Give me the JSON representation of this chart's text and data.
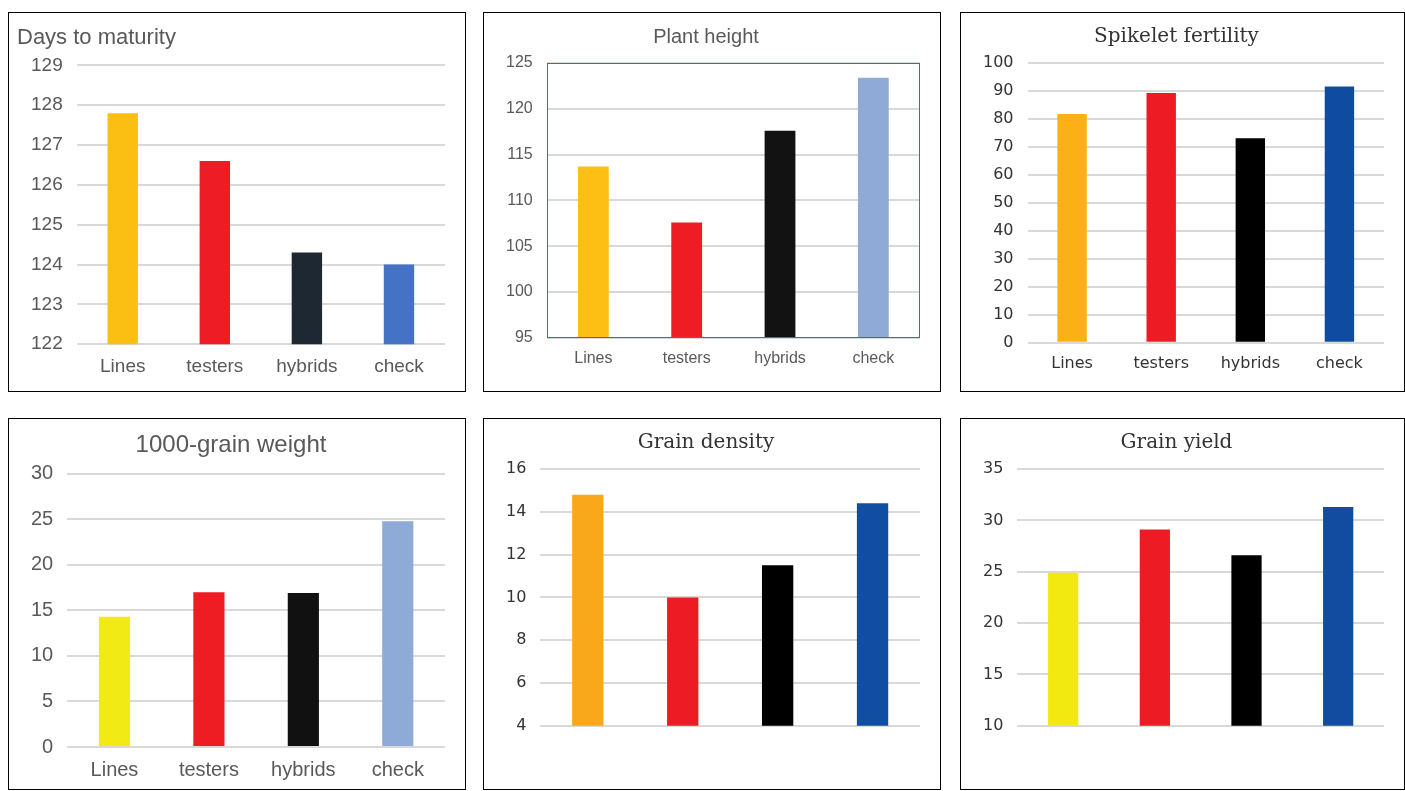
{
  "chart_data": [
    {
      "type": "bar",
      "title": "Days to maturity",
      "categories": [
        "Lines",
        "testers",
        "hybrids",
        "check"
      ],
      "values": [
        127.8,
        126.6,
        124.3,
        124.0
      ],
      "colors": [
        "#fbbf14",
        "#ee1c24",
        "#1e2833",
        "#4472c4"
      ],
      "ylim": [
        122,
        129
      ],
      "yticks": [
        122,
        123,
        124,
        125,
        126,
        127,
        128,
        129
      ],
      "grid": "y",
      "legend": false
    },
    {
      "type": "bar",
      "title": "Plant height",
      "categories": [
        "Lines",
        "testers",
        "hybrids",
        "check"
      ],
      "values": [
        113.7,
        107.6,
        117.6,
        123.4
      ],
      "colors": [
        "#fdbf13",
        "#ee1d23",
        "#121212",
        "#8faad6"
      ],
      "ylim": [
        95,
        125
      ],
      "yticks": [
        95,
        100,
        105,
        110,
        115,
        120,
        125
      ],
      "grid": "y",
      "legend": false
    },
    {
      "type": "bar",
      "title": "Spikelet fertility",
      "categories": [
        "Lines",
        "testers",
        "hybrids",
        "check"
      ],
      "values": [
        81.8,
        89.3,
        73.1,
        91.6
      ],
      "colors": [
        "#fbb116",
        "#ed1c24",
        "#000000",
        "#0f4c9f"
      ],
      "ylim": [
        0,
        100
      ],
      "yticks": [
        0,
        10,
        20,
        30,
        40,
        50,
        60,
        70,
        80,
        90,
        100
      ],
      "grid": "y",
      "legend": false
    },
    {
      "type": "bar",
      "title": "1000-grain weight",
      "categories": [
        "Lines",
        "testers",
        "hybrids",
        "check"
      ],
      "values": [
        14.3,
        17.0,
        16.9,
        24.8
      ],
      "colors": [
        "#f2ea14",
        "#ee1d23",
        "#111111",
        "#8eaad6"
      ],
      "ylim": [
        0,
        30
      ],
      "yticks": [
        0,
        5,
        10,
        15,
        20,
        25,
        30
      ],
      "grid": "y",
      "legend": false
    },
    {
      "type": "bar",
      "title": "Grain density",
      "categories": [
        null,
        null,
        null,
        null
      ],
      "values": [
        14.8,
        10.0,
        11.5,
        14.4
      ],
      "colors": [
        "#f9a81c",
        "#ed1c24",
        "#000000",
        "#114da0"
      ],
      "ylim": [
        4,
        16
      ],
      "yticks": [
        4,
        6,
        8,
        10,
        12,
        14,
        16
      ],
      "grid": "y",
      "legend": false
    },
    {
      "type": "bar",
      "title": "Grain yield",
      "categories": [
        null,
        null,
        null,
        null
      ],
      "values": [
        24.9,
        29.1,
        26.6,
        31.3
      ],
      "colors": [
        "#f1e90f",
        "#ed1c24",
        "#000000",
        "#124ca0"
      ],
      "ylim": [
        10,
        35
      ],
      "yticks": [
        10,
        15,
        20,
        25,
        30,
        35
      ],
      "grid": "y",
      "legend": false
    }
  ]
}
